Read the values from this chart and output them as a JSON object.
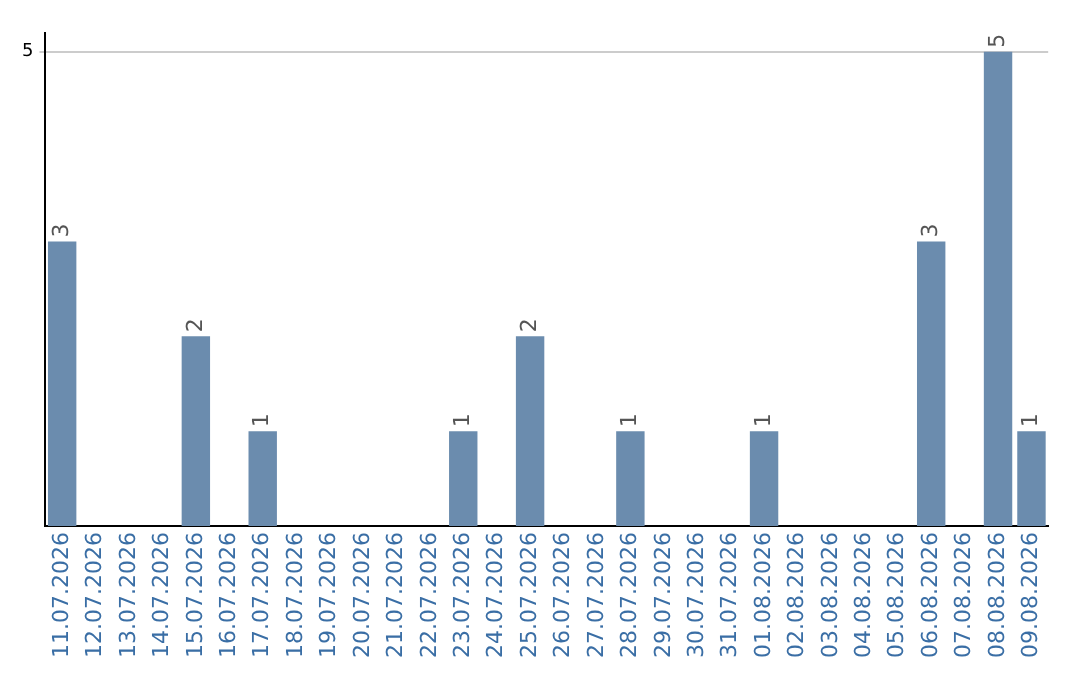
{
  "chart_data": {
    "type": "bar",
    "categories": [
      "11.07.2026",
      "12.07.2026",
      "13.07.2026",
      "14.07.2026",
      "15.07.2026",
      "16.07.2026",
      "17.07.2026",
      "18.07.2026",
      "19.07.2026",
      "20.07.2026",
      "21.07.2026",
      "22.07.2026",
      "23.07.2026",
      "24.07.2026",
      "25.07.2026",
      "26.07.2026",
      "27.07.2026",
      "28.07.2026",
      "29.07.2026",
      "30.07.2026",
      "31.07.2026",
      "01.08.2026",
      "02.08.2026",
      "03.08.2026",
      "04.08.2026",
      "05.08.2026",
      "06.08.2026",
      "07.08.2026",
      "08.08.2026",
      "09.08.2026"
    ],
    "values": [
      3,
      0,
      0,
      0,
      2,
      0,
      1,
      0,
      0,
      0,
      0,
      0,
      1,
      0,
      2,
      0,
      0,
      1,
      0,
      0,
      0,
      1,
      0,
      0,
      0,
      0,
      3,
      0,
      5,
      1
    ],
    "value_labels": [
      "3",
      null,
      null,
      null,
      "2",
      null,
      "1",
      null,
      null,
      null,
      null,
      null,
      "1",
      null,
      "2",
      null,
      null,
      "1",
      null,
      null,
      null,
      "1",
      null,
      null,
      null,
      null,
      "3",
      null,
      "5",
      "1"
    ],
    "color": "#6b8cae",
    "ylim": [
      0,
      5.2
    ],
    "yticks": [
      5
    ],
    "grid": "y",
    "legend": false
  }
}
